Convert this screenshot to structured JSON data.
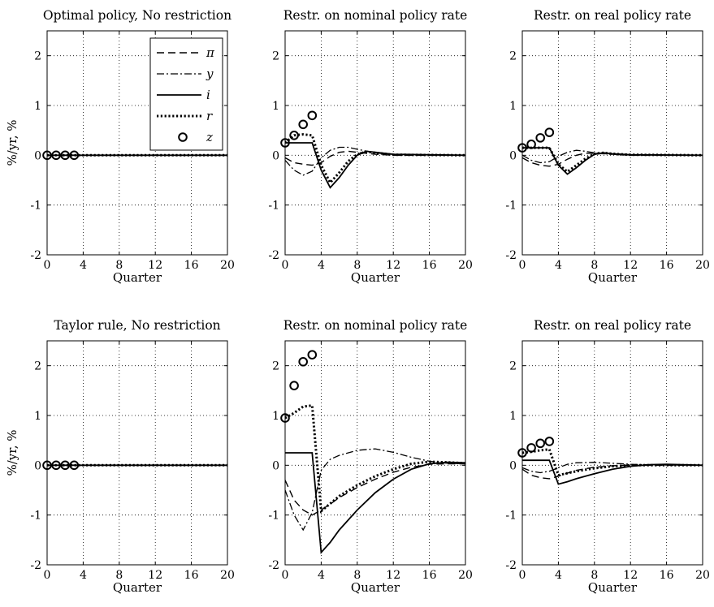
{
  "chart_data": {
    "type": "line",
    "x_ticks": [
      0,
      4,
      8,
      12,
      16,
      20
    ],
    "y_ticks": [
      -2,
      -1,
      0,
      1,
      2
    ],
    "xlim": [
      0,
      20
    ],
    "ylim": [
      -2,
      2.5
    ],
    "grid": true,
    "legend": {
      "placement": "top-right of first panel",
      "entries": [
        {
          "series": "pi",
          "label": "π"
        },
        {
          "series": "y",
          "label": "y"
        },
        {
          "series": "i",
          "label": "i"
        },
        {
          "series": "r",
          "label": "r"
        },
        {
          "series": "z",
          "label": "z"
        }
      ]
    },
    "panels": [
      {
        "title": "Optimal policy, No restriction",
        "ylabel": "%/yr, %",
        "xlabel": "Quarter",
        "series": {
          "pi": [
            [
              0,
              0
            ],
            [
              20,
              0
            ]
          ],
          "y": [
            [
              0,
              0
            ],
            [
              20,
              0
            ]
          ],
          "i": [
            [
              0,
              0
            ],
            [
              20,
              0
            ]
          ],
          "r": [
            [
              0,
              0
            ],
            [
              20,
              0
            ]
          ],
          "z": [
            [
              0,
              0
            ],
            [
              1,
              0
            ],
            [
              2,
              0
            ],
            [
              3,
              0
            ]
          ]
        }
      },
      {
        "title": "Restr. on nominal policy rate",
        "ylabel": "",
        "xlabel": "Quarter",
        "series": {
          "pi": [
            [
              0,
              -0.05
            ],
            [
              1,
              -0.15
            ],
            [
              2,
              -0.18
            ],
            [
              3,
              -0.2
            ],
            [
              4,
              -0.15
            ],
            [
              5,
              -0.02
            ],
            [
              6,
              0.06
            ],
            [
              7,
              0.08
            ],
            [
              8,
              0.06
            ],
            [
              10,
              0.02
            ],
            [
              12,
              0
            ],
            [
              20,
              0
            ]
          ],
          "y": [
            [
              0,
              -0.1
            ],
            [
              1,
              -0.3
            ],
            [
              2,
              -0.4
            ],
            [
              3,
              -0.32
            ],
            [
              4,
              -0.05
            ],
            [
              5,
              0.1
            ],
            [
              6,
              0.16
            ],
            [
              7,
              0.16
            ],
            [
              8,
              0.12
            ],
            [
              10,
              0.05
            ],
            [
              12,
              0.01
            ],
            [
              20,
              0
            ]
          ],
          "i": [
            [
              0,
              0.25
            ],
            [
              3,
              0.25
            ],
            [
              4,
              -0.3
            ],
            [
              5,
              -0.65
            ],
            [
              6,
              -0.45
            ],
            [
              7,
              -0.2
            ],
            [
              8,
              0
            ],
            [
              9,
              0.08
            ],
            [
              10,
              0.06
            ],
            [
              12,
              0.02
            ],
            [
              20,
              0
            ]
          ],
          "r": [
            [
              0,
              0.25
            ],
            [
              1,
              0.4
            ],
            [
              2,
              0.42
            ],
            [
              3,
              0.4
            ],
            [
              4,
              -0.2
            ],
            [
              5,
              -0.55
            ],
            [
              6,
              -0.35
            ],
            [
              7,
              -0.12
            ],
            [
              8,
              0.02
            ],
            [
              9,
              0.07
            ],
            [
              10,
              0.05
            ],
            [
              12,
              0.01
            ],
            [
              20,
              0
            ]
          ],
          "z": [
            [
              0,
              0.25
            ],
            [
              1,
              0.4
            ],
            [
              2,
              0.62
            ],
            [
              3,
              0.8
            ]
          ]
        }
      },
      {
        "title": "Restr. on real policy rate",
        "ylabel": "",
        "xlabel": "Quarter",
        "series": {
          "pi": [
            [
              0,
              -0.05
            ],
            [
              1,
              -0.15
            ],
            [
              2,
              -0.2
            ],
            [
              3,
              -0.22
            ],
            [
              4,
              -0.18
            ],
            [
              5,
              -0.08
            ],
            [
              6,
              0
            ],
            [
              7,
              0.04
            ],
            [
              8,
              0.04
            ],
            [
              10,
              0.02
            ],
            [
              12,
              0
            ],
            [
              20,
              0
            ]
          ],
          "y": [
            [
              0,
              0
            ],
            [
              1,
              -0.1
            ],
            [
              2,
              -0.15
            ],
            [
              3,
              -0.13
            ],
            [
              4,
              -0.02
            ],
            [
              5,
              0.06
            ],
            [
              6,
              0.1
            ],
            [
              7,
              0.08
            ],
            [
              8,
              0.05
            ],
            [
              10,
              0.02
            ],
            [
              12,
              0
            ],
            [
              20,
              0
            ]
          ],
          "i": [
            [
              0,
              0.15
            ],
            [
              3,
              0.15
            ],
            [
              4,
              -0.2
            ],
            [
              5,
              -0.38
            ],
            [
              6,
              -0.25
            ],
            [
              7,
              -0.1
            ],
            [
              8,
              0.02
            ],
            [
              9,
              0.05
            ],
            [
              10,
              0.03
            ],
            [
              12,
              0.01
            ],
            [
              20,
              0
            ]
          ],
          "r": [
            [
              0,
              0.15
            ],
            [
              1,
              0.15
            ],
            [
              2,
              0.15
            ],
            [
              3,
              0.15
            ],
            [
              4,
              -0.18
            ],
            [
              5,
              -0.33
            ],
            [
              6,
              -0.2
            ],
            [
              7,
              -0.07
            ],
            [
              8,
              0.03
            ],
            [
              9,
              0.05
            ],
            [
              10,
              0.03
            ],
            [
              12,
              0.01
            ],
            [
              20,
              0
            ]
          ],
          "z": [
            [
              0,
              0.15
            ],
            [
              1,
              0.22
            ],
            [
              2,
              0.35
            ],
            [
              3,
              0.46
            ]
          ]
        }
      },
      {
        "title": "Taylor rule, No restriction",
        "ylabel": "%/yr, %",
        "xlabel": "Quarter",
        "series": {
          "pi": [
            [
              0,
              0
            ],
            [
              20,
              0
            ]
          ],
          "y": [
            [
              0,
              0
            ],
            [
              20,
              0
            ]
          ],
          "i": [
            [
              0,
              0
            ],
            [
              20,
              0
            ]
          ],
          "r": [
            [
              0,
              0
            ],
            [
              20,
              0
            ]
          ],
          "z": [
            [
              0,
              0
            ],
            [
              1,
              0
            ],
            [
              2,
              0
            ],
            [
              3,
              0
            ]
          ]
        }
      },
      {
        "title": "Restr. on nominal policy rate",
        "ylabel": "",
        "xlabel": "Quarter",
        "series": {
          "pi": [
            [
              0,
              -0.3
            ],
            [
              1,
              -0.7
            ],
            [
              2,
              -0.9
            ],
            [
              3,
              -1.0
            ],
            [
              4,
              -0.9
            ],
            [
              5,
              -0.78
            ],
            [
              6,
              -0.65
            ],
            [
              8,
              -0.45
            ],
            [
              10,
              -0.28
            ],
            [
              12,
              -0.14
            ],
            [
              14,
              -0.04
            ],
            [
              16,
              0.02
            ],
            [
              18,
              0.03
            ],
            [
              20,
              0.03
            ]
          ],
          "y": [
            [
              0,
              -0.5
            ],
            [
              1,
              -1.0
            ],
            [
              2,
              -1.3
            ],
            [
              3,
              -0.95
            ],
            [
              4,
              -0.1
            ],
            [
              5,
              0.12
            ],
            [
              6,
              0.2
            ],
            [
              8,
              0.3
            ],
            [
              10,
              0.33
            ],
            [
              12,
              0.26
            ],
            [
              14,
              0.16
            ],
            [
              16,
              0.08
            ],
            [
              18,
              0.04
            ],
            [
              20,
              0.03
            ]
          ],
          "i": [
            [
              0,
              0.25
            ],
            [
              3,
              0.25
            ],
            [
              4,
              -1.75
            ],
            [
              5,
              -1.55
            ],
            [
              6,
              -1.3
            ],
            [
              8,
              -0.9
            ],
            [
              10,
              -0.55
            ],
            [
              12,
              -0.28
            ],
            [
              14,
              -0.08
            ],
            [
              16,
              0.03
            ],
            [
              18,
              0.06
            ],
            [
              20,
              0.05
            ]
          ],
          "r": [
            [
              0,
              0.95
            ],
            [
              1,
              1.05
            ],
            [
              2,
              1.18
            ],
            [
              3,
              1.2
            ],
            [
              4,
              -0.92
            ],
            [
              5,
              -0.77
            ],
            [
              6,
              -0.62
            ],
            [
              8,
              -0.4
            ],
            [
              10,
              -0.22
            ],
            [
              12,
              -0.08
            ],
            [
              14,
              0.03
            ],
            [
              16,
              0.07
            ],
            [
              18,
              0.06
            ],
            [
              20,
              0.04
            ]
          ],
          "z": [
            [
              0,
              0.95
            ],
            [
              1,
              1.6
            ],
            [
              2,
              2.08
            ],
            [
              3,
              2.22
            ]
          ]
        }
      },
      {
        "title": "Restr. on real policy rate",
        "ylabel": "",
        "xlabel": "Quarter",
        "series": {
          "pi": [
            [
              0,
              -0.08
            ],
            [
              1,
              -0.2
            ],
            [
              2,
              -0.25
            ],
            [
              3,
              -0.27
            ],
            [
              4,
              -0.22
            ],
            [
              5,
              -0.16
            ],
            [
              6,
              -0.1
            ],
            [
              8,
              -0.04
            ],
            [
              10,
              -0.01
            ],
            [
              12,
              0
            ],
            [
              20,
              0
            ]
          ],
          "y": [
            [
              0,
              -0.05
            ],
            [
              1,
              -0.12
            ],
            [
              2,
              -0.15
            ],
            [
              3,
              -0.12
            ],
            [
              4,
              -0.05
            ],
            [
              5,
              0.02
            ],
            [
              6,
              0.05
            ],
            [
              8,
              0.06
            ],
            [
              10,
              0.04
            ],
            [
              12,
              0.02
            ],
            [
              14,
              0.01
            ],
            [
              20,
              0
            ]
          ],
          "i": [
            [
              0,
              0.1
            ],
            [
              3,
              0.1
            ],
            [
              4,
              -0.38
            ],
            [
              5,
              -0.33
            ],
            [
              6,
              -0.27
            ],
            [
              8,
              -0.17
            ],
            [
              10,
              -0.08
            ],
            [
              12,
              -0.02
            ],
            [
              14,
              0.01
            ],
            [
              16,
              0.02
            ],
            [
              20,
              0
            ]
          ],
          "r": [
            [
              0,
              0.25
            ],
            [
              1,
              0.27
            ],
            [
              2,
              0.3
            ],
            [
              3,
              0.32
            ],
            [
              4,
              -0.2
            ],
            [
              5,
              -0.16
            ],
            [
              6,
              -0.12
            ],
            [
              8,
              -0.06
            ],
            [
              10,
              -0.02
            ],
            [
              12,
              0
            ],
            [
              20,
              0
            ]
          ],
          "z": [
            [
              0,
              0.25
            ],
            [
              1,
              0.35
            ],
            [
              2,
              0.44
            ],
            [
              3,
              0.48
            ]
          ]
        }
      }
    ]
  }
}
